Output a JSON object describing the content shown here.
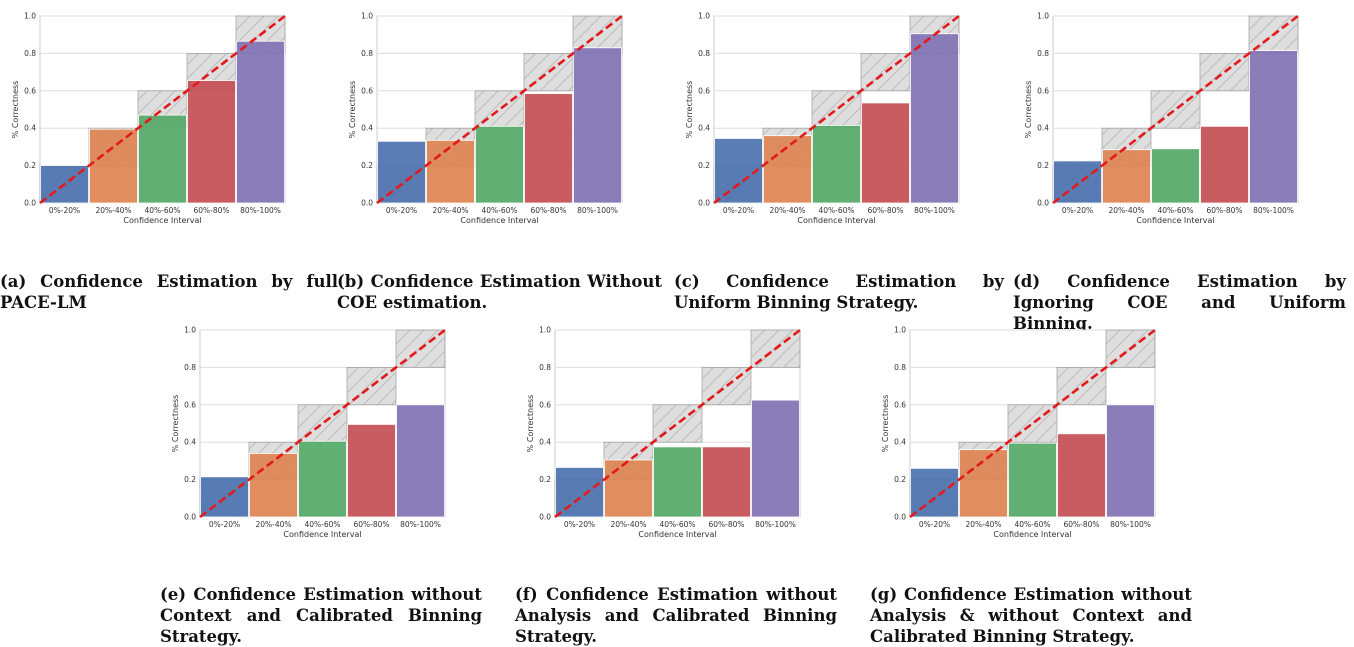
{
  "colors": {
    "bars": [
      "#4c72b0",
      "#dd8452",
      "#55a868",
      "#c44e52",
      "#8172b3"
    ],
    "diagonal": "#e31a1c",
    "gap_fill": "#d9d9d9",
    "grid": "#dddddd"
  },
  "chart_data": [
    {
      "type": "bar",
      "categories": [
        "0%-20%",
        "20%-40%",
        "40%-60%",
        "60%-80%",
        "80%-100%"
      ],
      "values": [
        0.2,
        0.395,
        0.47,
        0.655,
        0.865
      ],
      "xlabel": "Confidence Interval",
      "ylabel": "% Correctness",
      "ylim": [
        0,
        1.0
      ],
      "yticks": [
        "0.0",
        "0.2",
        "0.4",
        "0.6",
        "0.8",
        "1.0"
      ],
      "grid": true,
      "caption": "(a) Confidence Estimation by full PACE-LM"
    },
    {
      "type": "bar",
      "categories": [
        "0%-20%",
        "20%-40%",
        "40%-60%",
        "60%-80%",
        "80%-100%"
      ],
      "values": [
        0.33,
        0.335,
        0.41,
        0.585,
        0.83
      ],
      "xlabel": "Confidence Interval",
      "ylabel": "% Correctness",
      "ylim": [
        0,
        1.0
      ],
      "yticks": [
        "0.0",
        "0.2",
        "0.4",
        "0.6",
        "0.8",
        "1.0"
      ],
      "grid": true,
      "caption": "(b) Confidence Estimation Without COE estimation."
    },
    {
      "type": "bar",
      "categories": [
        "0%-20%",
        "20%-40%",
        "40%-60%",
        "60%-80%",
        "80%-100%"
      ],
      "values": [
        0.345,
        0.36,
        0.415,
        0.535,
        0.905
      ],
      "xlabel": "Confidence Interval",
      "ylabel": "% Correctness",
      "ylim": [
        0,
        1.0
      ],
      "yticks": [
        "0.0",
        "0.2",
        "0.4",
        "0.6",
        "0.8",
        "1.0"
      ],
      "grid": true,
      "caption": "(c) Confidence Estimation by Uniform Binning Strategy."
    },
    {
      "type": "bar",
      "categories": [
        "0%-20%",
        "20%-40%",
        "40%-60%",
        "60%-80%",
        "80%-100%"
      ],
      "values": [
        0.225,
        0.285,
        0.29,
        0.41,
        0.815
      ],
      "xlabel": "Confidence Interval",
      "ylabel": "% Correctness",
      "ylim": [
        0,
        1.0
      ],
      "yticks": [
        "0.0",
        "0.2",
        "0.4",
        "0.6",
        "0.8",
        "1.0"
      ],
      "grid": true,
      "caption": "(d) Confidence Estimation by Ignoring COE and Uniform Binning."
    },
    {
      "type": "bar",
      "categories": [
        "0%-20%",
        "20%-40%",
        "40%-60%",
        "60%-80%",
        "80%-100%"
      ],
      "values": [
        0.215,
        0.34,
        0.405,
        0.495,
        0.6
      ],
      "xlabel": "Confidence Interval",
      "ylabel": "% Correctness",
      "ylim": [
        0,
        1.0
      ],
      "yticks": [
        "0.0",
        "0.2",
        "0.4",
        "0.6",
        "0.8",
        "1.0"
      ],
      "grid": true,
      "caption": "(e) Confidence Estimation without Context and Calibrated Binning Strategy."
    },
    {
      "type": "bar",
      "categories": [
        "0%-20%",
        "20%-40%",
        "40%-60%",
        "60%-80%",
        "80%-100%"
      ],
      "values": [
        0.265,
        0.305,
        0.375,
        0.375,
        0.625
      ],
      "xlabel": "Confidence Interval",
      "ylabel": "% Correctness",
      "ylim": [
        0,
        1.0
      ],
      "yticks": [
        "0.0",
        "0.2",
        "0.4",
        "0.6",
        "0.8",
        "1.0"
      ],
      "grid": true,
      "caption": "(f) Confidence Estimation without Analysis and Calibrated Binning Strategy."
    },
    {
      "type": "bar",
      "categories": [
        "0%-20%",
        "20%-40%",
        "40%-60%",
        "60%-80%",
        "80%-100%"
      ],
      "values": [
        0.26,
        0.36,
        0.395,
        0.445,
        0.6
      ],
      "xlabel": "Confidence Interval",
      "ylabel": "% Correctness",
      "ylim": [
        0,
        1.0
      ],
      "yticks": [
        "0.0",
        "0.2",
        "0.4",
        "0.6",
        "0.8",
        "1.0"
      ],
      "grid": true,
      "caption": "(g) Confidence Estimation without Analysis & without Context and Calibrated Binning Strategy."
    }
  ]
}
